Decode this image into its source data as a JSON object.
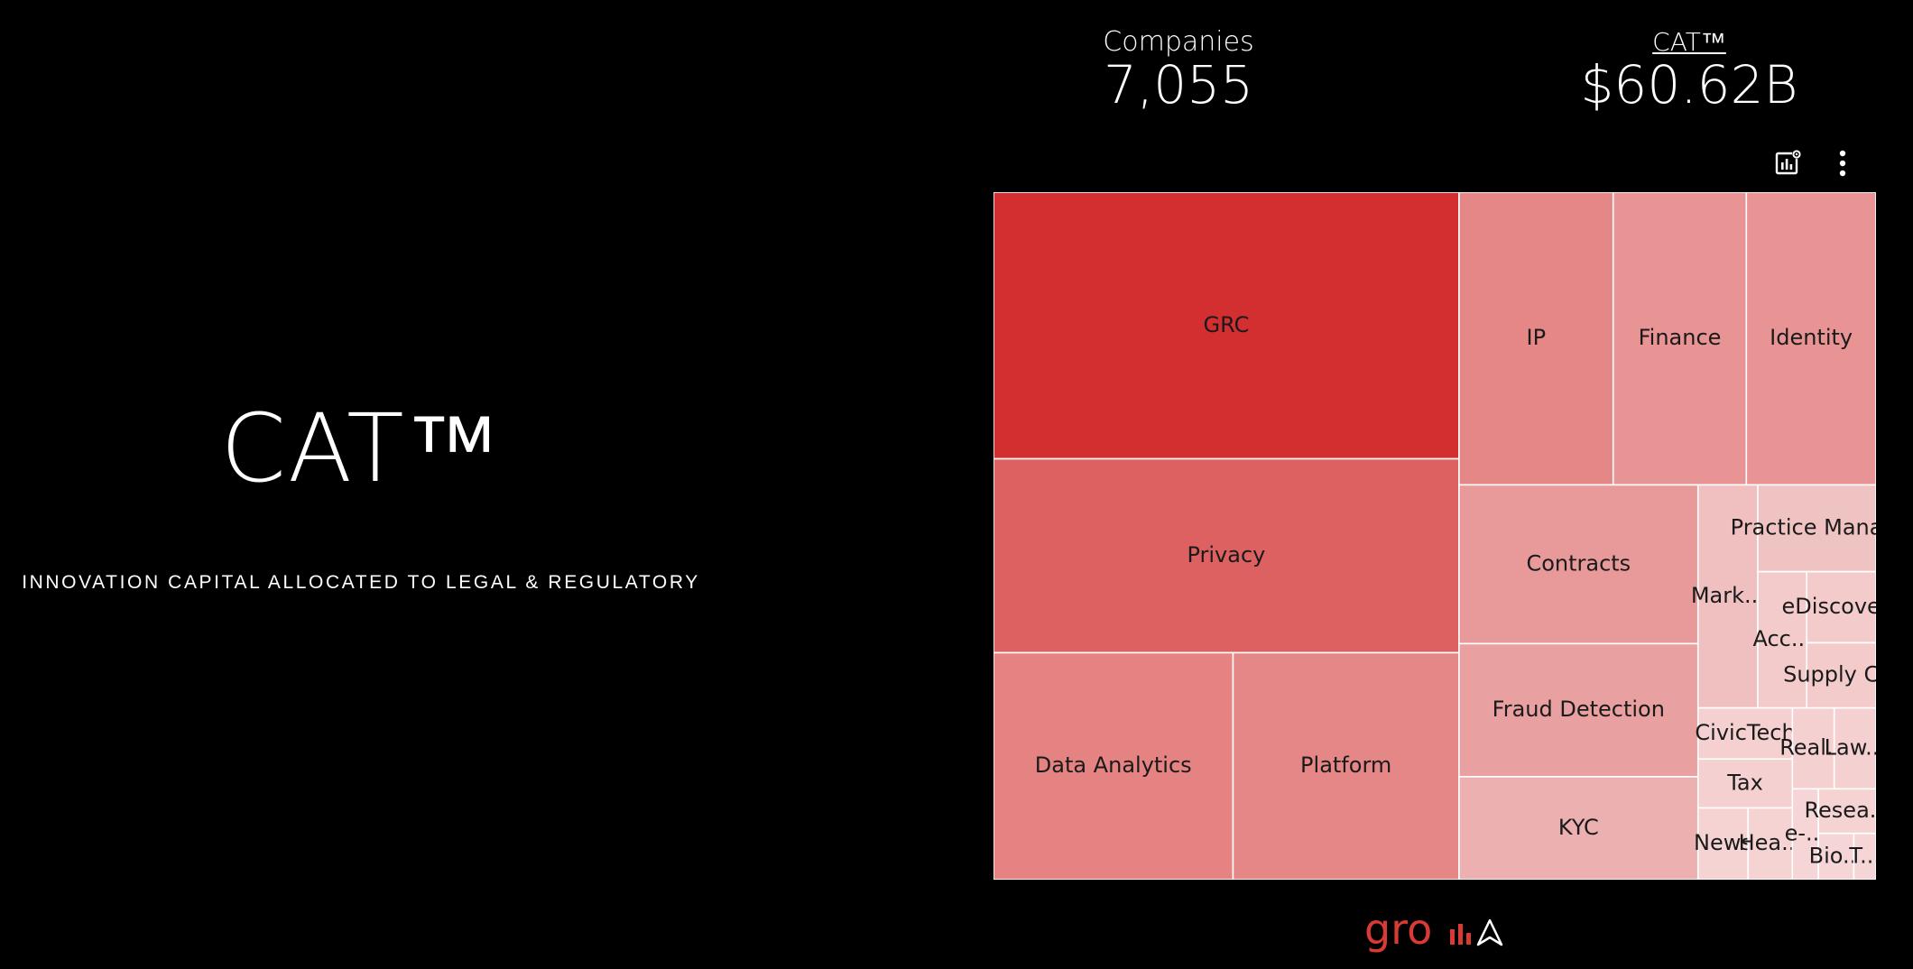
{
  "hero": {
    "title": "CAT™",
    "subtitle": "INNOVATION CAPITAL ALLOCATED TO LEGAL & REGULATORY"
  },
  "kpis": {
    "companies_label": "Companies",
    "companies_value": "7,055",
    "cat_label": "CAT™",
    "cat_value": "$60.62B"
  },
  "toolbar": {
    "chart_settings_icon": "chart-settings-icon",
    "more_icon": "more-vertical-icon"
  },
  "brand": {
    "logo_text": "gro",
    "logo_color": "#d93a36"
  },
  "colors": {
    "background": "#000000",
    "text": "#ffffff",
    "tile_border": "#ffffff",
    "tile_label": "#1a1a1a"
  },
  "chart_data": {
    "type": "treemap",
    "title": "",
    "items": [
      {
        "label": "GRC",
        "value": 12.1,
        "color": "#d32f31"
      },
      {
        "label": "Privacy",
        "value": 8.8,
        "color": "#dd6161"
      },
      {
        "label": "Data Analytics",
        "value": 5.3,
        "color": "#e58282"
      },
      {
        "label": "Platform",
        "value": 5.0,
        "color": "#e58787"
      },
      {
        "label": "IP",
        "value": 4.4,
        "color": "#e58787"
      },
      {
        "label": "Finance",
        "value": 3.8,
        "color": "#e89394"
      },
      {
        "label": "Identity",
        "value": 3.7,
        "color": "#e89394"
      },
      {
        "label": "Contracts",
        "value": 3.7,
        "color": "#e89a9a"
      },
      {
        "label": "Fraud Detection",
        "value": 3.1,
        "color": "#e9a0a0"
      },
      {
        "label": "KYC",
        "value": 2.4,
        "color": "#ecb0b0"
      },
      {
        "label": "Mark...",
        "value": 1.3,
        "color": "#f0c0c1"
      },
      {
        "label": "Practice Mana...",
        "value": 1.0,
        "color": "#f0c3c3"
      },
      {
        "label": "Acc...",
        "value": 0.65,
        "color": "#f3cbcb"
      },
      {
        "label": "eDiscove...",
        "value": 0.48,
        "color": "#f3cbcb"
      },
      {
        "label": "Supply C...",
        "value": 0.44,
        "color": "#f3cbcb"
      },
      {
        "label": "CivicTech",
        "value": 0.47,
        "color": "#f4d0d0"
      },
      {
        "label": "Tax",
        "value": 0.45,
        "color": "#f4d0d0"
      },
      {
        "label": "Real...",
        "value": 0.33,
        "color": "#f4d0d0"
      },
      {
        "label": "Law...",
        "value": 0.33,
        "color": "#f4d0d0"
      },
      {
        "label": "News",
        "value": 0.35,
        "color": "#f5d3d3"
      },
      {
        "label": "Hea...",
        "value": 0.31,
        "color": "#f5d3d3"
      },
      {
        "label": "Resea...",
        "value": 0.25,
        "color": "#f5d3d3"
      },
      {
        "label": "e-...",
        "value": 0.23,
        "color": "#f5d5d5"
      },
      {
        "label": "Bio...",
        "value": 0.16,
        "color": "#f5d5d5"
      },
      {
        "label": "T...",
        "value": 0.1,
        "color": "#f5d5d5"
      }
    ]
  }
}
